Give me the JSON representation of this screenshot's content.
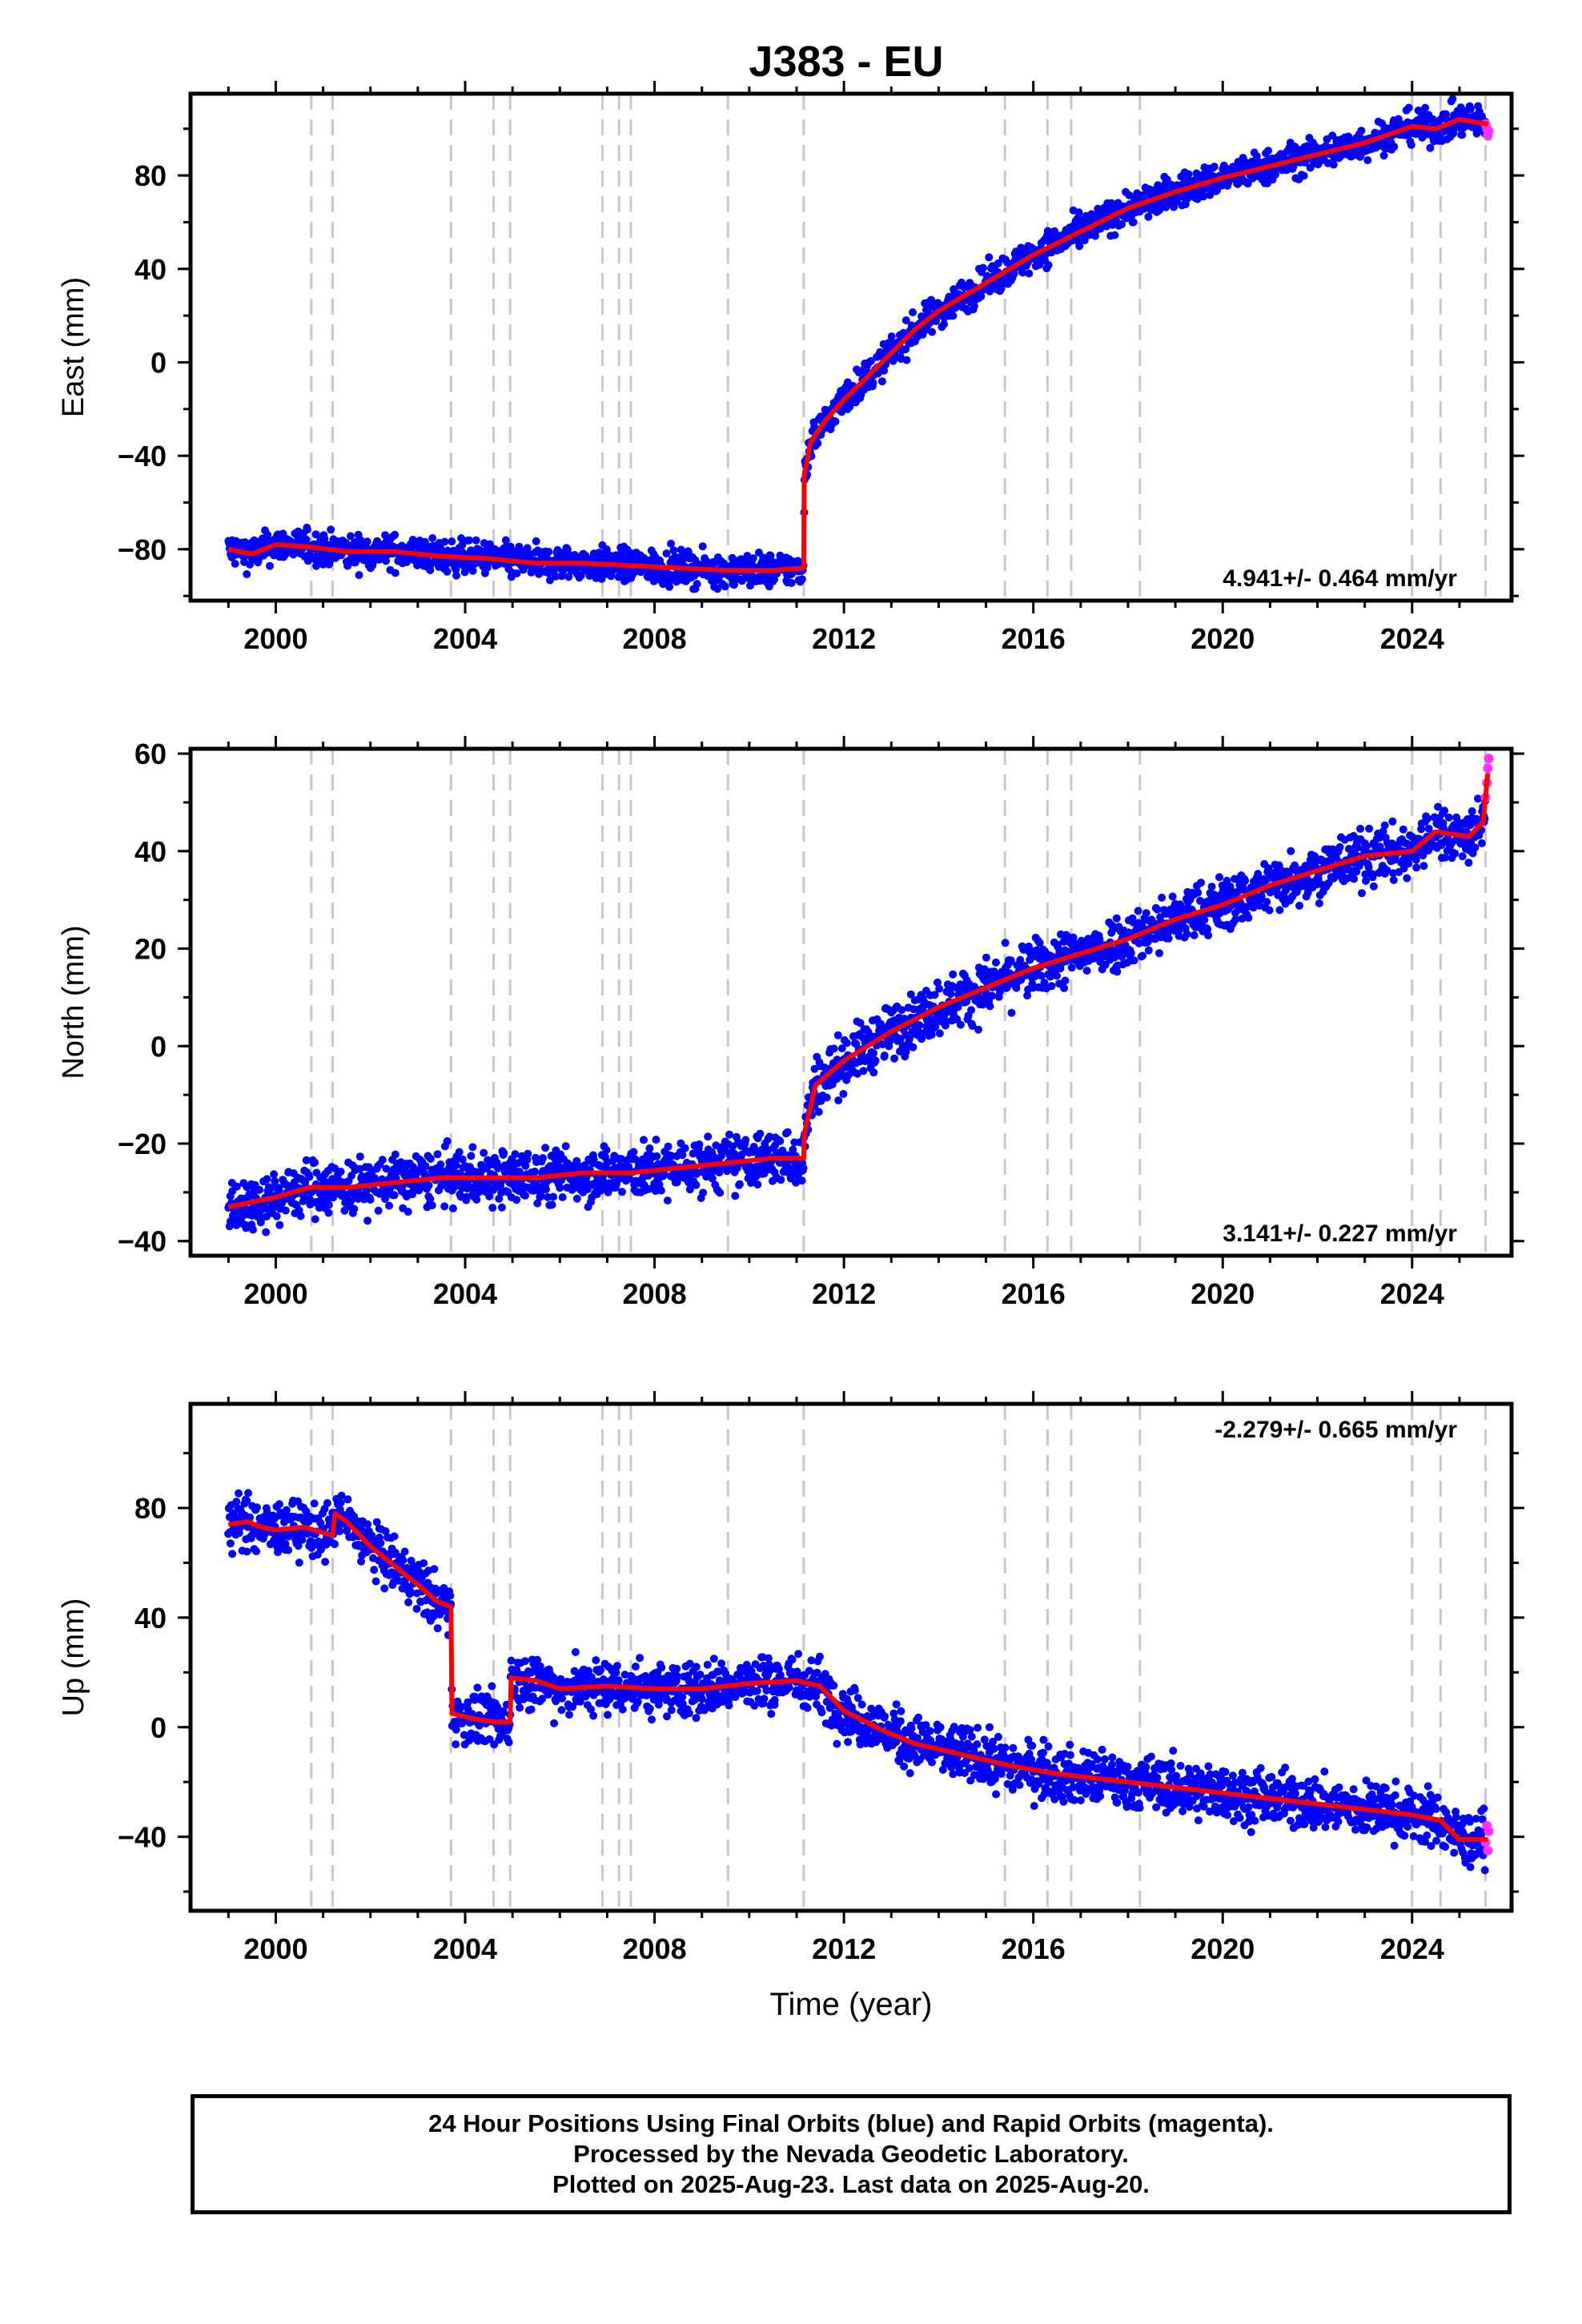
{
  "title": "J383 - EU",
  "chart_data": [
    {
      "type": "scatter",
      "ylabel": "East (mm)",
      "xlabel": "",
      "xlim": [
        1998.2,
        2026.1
      ],
      "ylim": [
        -102,
        115
      ],
      "xticks": [
        "2000",
        "2004",
        "2008",
        "2012",
        "2016",
        "2020",
        "2024"
      ],
      "yticks": [
        "−80",
        "−40",
        "0",
        "40",
        "80"
      ],
      "rate_text": "4.941+/- 0.464 mm/yr",
      "rate_position": "bottom-right",
      "event_lines_years": [
        2000.75,
        2001.2,
        2003.7,
        2004.6,
        2004.95,
        2006.9,
        2007.25,
        2007.5,
        2009.55,
        2011.15,
        2015.4,
        2016.3,
        2016.8,
        2018.25,
        2024.0,
        2024.6,
        2025.55
      ],
      "trend_line": {
        "name": "model",
        "color": "#ff0000",
        "x": [
          1999.0,
          1999.5,
          2000.0,
          2000.7,
          2001.5,
          2002.5,
          2003.5,
          2004.5,
          2005.5,
          2006.5,
          2007.5,
          2008.5,
          2009.5,
          2010.5,
          2011.15,
          2011.16,
          2011.3,
          2011.6,
          2012.0,
          2012.5,
          2013.0,
          2013.5,
          2014.0,
          2015.0,
          2016.0,
          2017.0,
          2018.0,
          2019.0,
          2020.0,
          2021.0,
          2022.0,
          2023.0,
          2024.0,
          2024.5,
          2025.0,
          2025.6
        ],
        "y": [
          -80,
          -82,
          -78,
          -79,
          -81,
          -81,
          -83,
          -84,
          -86,
          -86,
          -87,
          -88,
          -89,
          -89,
          -88,
          -48,
          -34,
          -25,
          -16,
          -6,
          4,
          14,
          22,
          34,
          46,
          56,
          66,
          73,
          79,
          84,
          89,
          94,
          101,
          100,
          104,
          102
        ]
      },
      "final_orbits": {
        "name": "Final Orbits",
        "color": "#0000ff",
        "x_range": [
          1999.0,
          2025.55
        ],
        "spread_mm": 5
      },
      "rapid_orbits": {
        "name": "Rapid Orbits",
        "color": "#ff33ff",
        "x": [
          2025.55,
          2025.58,
          2025.6,
          2025.62
        ],
        "y": [
          102,
          100,
          97,
          99
        ]
      }
    },
    {
      "type": "scatter",
      "ylabel": "North (mm)",
      "xlabel": "",
      "xlim": [
        1998.2,
        2026.1
      ],
      "ylim": [
        -43,
        61
      ],
      "xticks": [
        "2000",
        "2004",
        "2008",
        "2012",
        "2016",
        "2020",
        "2024"
      ],
      "yticks": [
        "−40",
        "−20",
        "0",
        "20",
        "40",
        "60"
      ],
      "rate_text": "3.141+/- 0.227 mm/yr",
      "rate_position": "bottom-right",
      "event_lines_years": [
        2000.75,
        2001.2,
        2003.7,
        2004.6,
        2004.95,
        2006.9,
        2007.25,
        2007.5,
        2009.55,
        2011.15,
        2015.4,
        2016.3,
        2016.8,
        2018.25,
        2024.0,
        2024.6,
        2025.55
      ],
      "trend_line": {
        "name": "model",
        "color": "#ff0000",
        "x": [
          1999.0,
          1999.5,
          2000.0,
          2000.7,
          2001.5,
          2002.5,
          2003.5,
          2004.5,
          2005.5,
          2006.5,
          2007.5,
          2008.5,
          2009.5,
          2010.5,
          2011.15,
          2011.16,
          2011.4,
          2012.0,
          2013.0,
          2014.0,
          2015.0,
          2016.0,
          2017.0,
          2018.0,
          2019.0,
          2020.0,
          2021.0,
          2022.0,
          2023.0,
          2024.0,
          2024.5,
          2025.2,
          2025.5,
          2025.6
        ],
        "y": [
          -33,
          -32,
          -31,
          -29,
          -29,
          -28,
          -27,
          -27,
          -27,
          -26,
          -26,
          -25,
          -24,
          -23,
          -23,
          -18,
          -8,
          -3,
          3,
          8,
          12,
          16,
          19,
          22,
          26,
          29,
          33,
          36,
          39,
          40,
          44,
          43,
          46,
          56
        ]
      },
      "final_orbits": {
        "name": "Final Orbits",
        "color": "#0000ff",
        "x_range": [
          1999.0,
          2025.55
        ],
        "spread_mm": 4
      },
      "rapid_orbits": {
        "name": "Rapid Orbits",
        "color": "#ff33ff",
        "x": [
          2025.55,
          2025.58,
          2025.6,
          2025.62
        ],
        "y": [
          51,
          54,
          57,
          59
        ]
      }
    },
    {
      "type": "scatter",
      "ylabel": "Up (mm)",
      "xlabel": "Time (year)",
      "xlim": [
        1998.2,
        2026.1
      ],
      "ylim": [
        -67,
        118
      ],
      "xticks": [
        "2000",
        "2004",
        "2008",
        "2012",
        "2016",
        "2020",
        "2024"
      ],
      "yticks": [
        "−40",
        "0",
        "40",
        "80"
      ],
      "rate_text": "-2.279+/- 0.665 mm/yr",
      "rate_position": "top-right",
      "event_lines_years": [
        2000.75,
        2001.2,
        2003.7,
        2004.6,
        2004.95,
        2006.9,
        2007.25,
        2007.5,
        2009.55,
        2011.15,
        2015.4,
        2016.3,
        2016.8,
        2018.25,
        2024.0,
        2024.6,
        2025.55
      ],
      "trend_line": {
        "name": "model",
        "color": "#ff0000",
        "x": [
          1999.0,
          1999.4,
          1999.7,
          2000.0,
          2000.6,
          2001.2,
          2001.25,
          2001.5,
          2002.0,
          2002.5,
          2003.0,
          2003.4,
          2003.7,
          2003.72,
          2004.2,
          2004.6,
          2004.95,
          2004.97,
          2005.5,
          2006.0,
          2007.0,
          2008.0,
          2009.0,
          2010.0,
          2011.0,
          2011.5,
          2012.0,
          2012.8,
          2013.5,
          2014.5,
          2015.5,
          2016.5,
          2017.5,
          2018.5,
          2019.5,
          2020.5,
          2021.5,
          2022.5,
          2023.5,
          2024.0,
          2024.6,
          2025.0,
          2025.6
        ],
        "y": [
          74,
          75,
          73,
          72,
          73,
          70,
          78,
          75,
          66,
          59,
          52,
          46,
          44,
          5,
          3,
          2,
          2,
          18,
          17,
          14,
          15,
          14,
          14,
          16,
          17,
          15,
          6,
          -1,
          -6,
          -10,
          -14,
          -17,
          -19,
          -21,
          -23,
          -25,
          -27,
          -29,
          -31,
          -32,
          -34,
          -41,
          -41
        ]
      },
      "final_orbits": {
        "name": "Final Orbits",
        "color": "#0000ff",
        "x_range": [
          1999.0,
          2025.55
        ],
        "spread_mm": 7
      },
      "rapid_orbits": {
        "name": "Rapid Orbits",
        "color": "#ff33ff",
        "x": [
          2025.55,
          2025.58,
          2025.6,
          2025.62
        ],
        "y": [
          -42,
          -36,
          -45,
          -38
        ]
      }
    }
  ],
  "footer": {
    "line1": "24 Hour Positions Using Final Orbits (blue) and Rapid Orbits (magenta).",
    "line2": "Processed by the Nevada Geodetic Laboratory.",
    "line3": "Plotted on 2025-Aug-23. Last data on 2025-Aug-20."
  }
}
